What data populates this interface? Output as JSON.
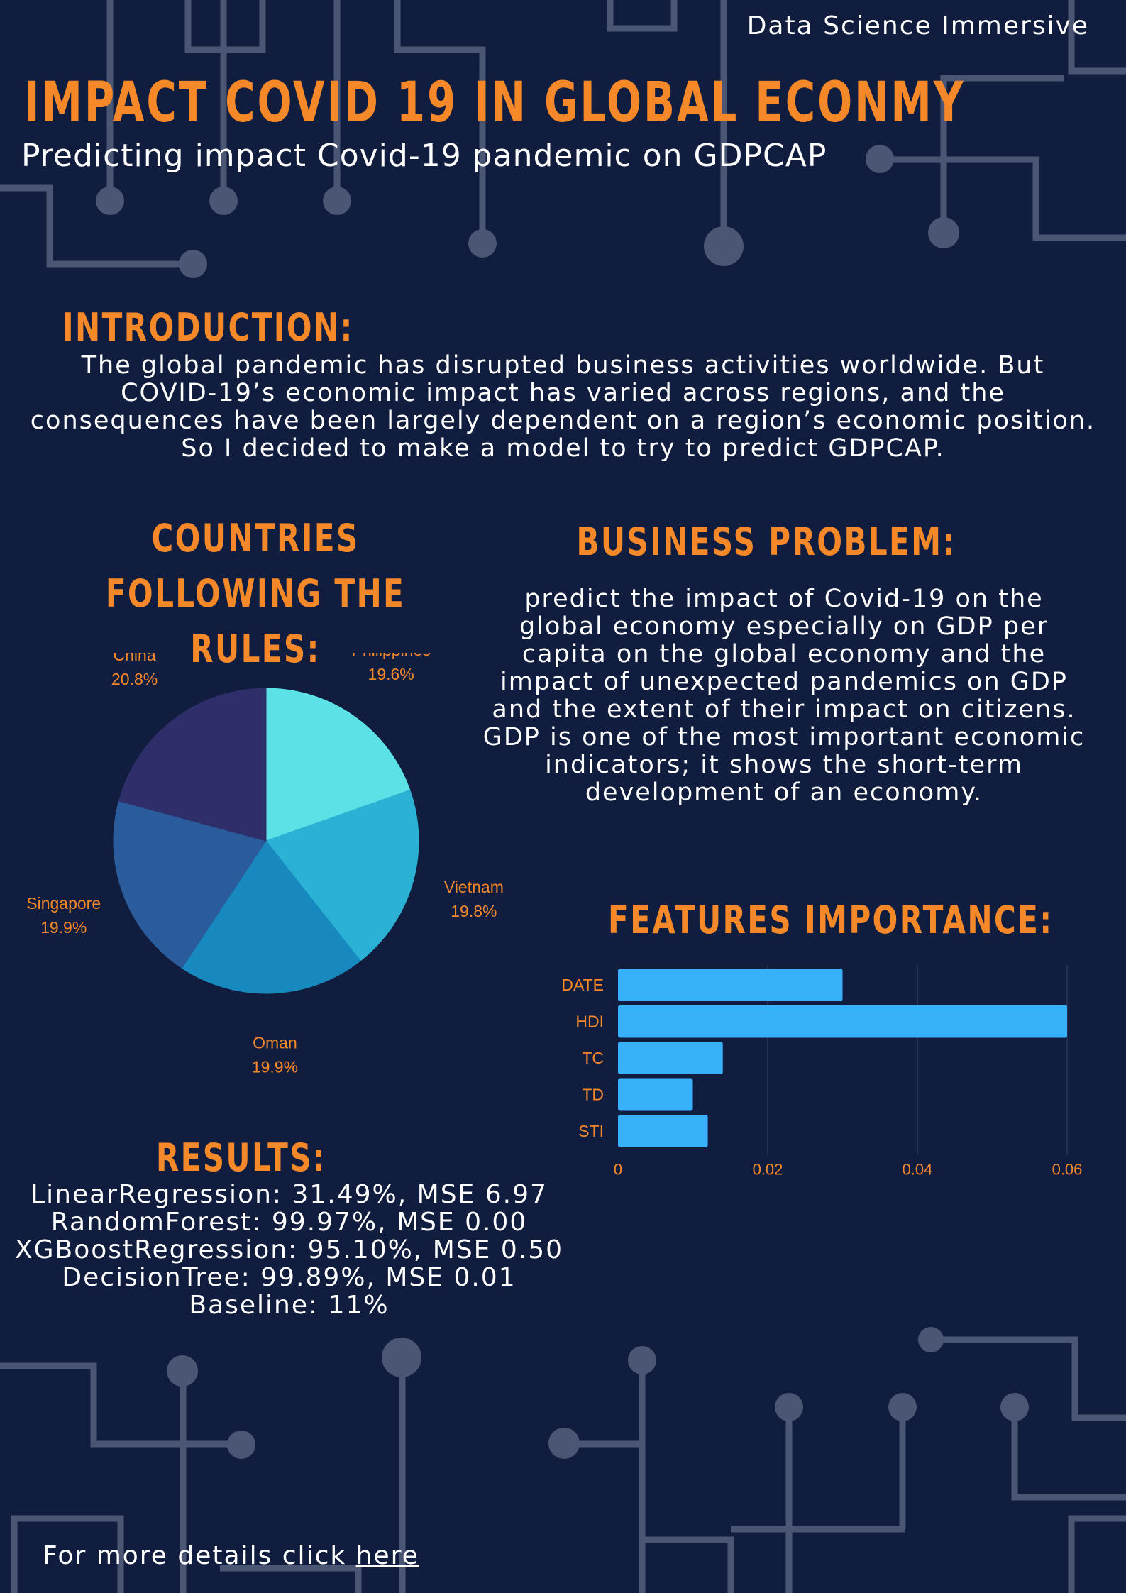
{
  "header": {
    "brand": "Data Science Immersive",
    "title": "IMPACT COVID 19 IN GLOBAL ECONMY",
    "subtitle": "Predicting impact Covid-19 pandemic  on GDPCAP"
  },
  "introduction": {
    "heading": "INTRODUCTION:",
    "text": "The global pandemic has disrupted business activities worldwide. But COVID-19’s economic impact has varied across regions, and the consequences have been largely dependent on a region’s economic position. So I decided to make a model to try to predict GDPCAP."
  },
  "countries": {
    "heading": "COUNTRIES FOLLOWING THE RULES:"
  },
  "business": {
    "heading": "BUSINESS PROBLEM:",
    "text": "predict the impact of Covid-19 on the global economy especially on GDP per capita on the global economy and the impact of unexpected pandemics on GDP and the extent of their impact on citizens. GDP is one of the most important economic indicators; it shows the short-term development of an economy."
  },
  "features": {
    "heading": "FEATURES IMPORTANCE:"
  },
  "results": {
    "heading": "RESULTS:",
    "items": [
      "LinearRegression: 31.49%, MSE 6.97",
      "RandomForest: 99.97%, MSE 0.00",
      "XGBoostRegression: 95.10%, MSE 0.50",
      "DecisionTree: 99.89%, MSE 0.01",
      "Baseline: 11%"
    ]
  },
  "footer": {
    "text": "For more details click ",
    "link_label": "here"
  },
  "colors": {
    "background": "#111d3e",
    "accent": "#f5892a",
    "bar": "#38b1fb",
    "circuit": "#4a5674"
  },
  "chart_data": [
    {
      "type": "pie",
      "categories": [
        "Philippines",
        "Vietnam",
        "Oman",
        "Singapore",
        "China"
      ],
      "values": [
        19.6,
        19.8,
        19.9,
        19.9,
        20.8
      ],
      "value_labels": [
        "19.6%",
        "19.8%",
        "19.9%",
        "19.9%",
        "20.8%"
      ],
      "colors": [
        "#5ce1e6",
        "#2ab1d4",
        "#1789be",
        "#2a5c9c",
        "#2e2f6a"
      ],
      "start": "12 o'clock, clockwise"
    },
    {
      "type": "bar",
      "orientation": "horizontal",
      "categories": [
        "DATE",
        "HDI",
        "TC",
        "TD",
        "STI"
      ],
      "values": [
        0.03,
        0.06,
        0.014,
        0.01,
        0.012
      ],
      "xlim": [
        0,
        0.06
      ],
      "xticks": [
        0,
        0.02,
        0.04,
        0.06
      ],
      "xtick_labels": [
        "0",
        "0.02",
        "0.04",
        "0.06"
      ],
      "grid": true,
      "color": "#38b1fb"
    }
  ]
}
